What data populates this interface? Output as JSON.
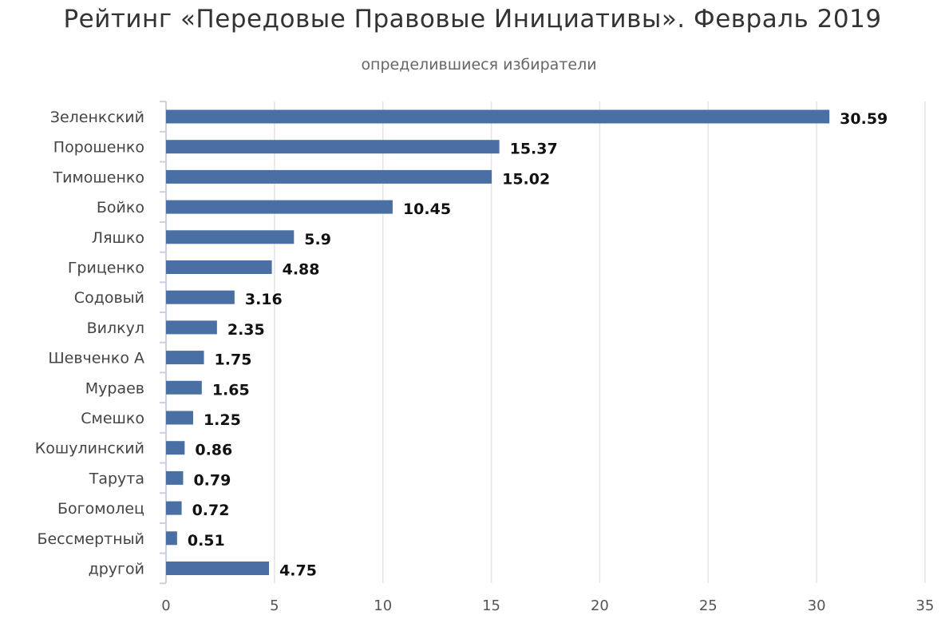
{
  "chart_data": {
    "type": "bar",
    "orientation": "horizontal",
    "title": "Рейтинг «Передовые Правовые Инициативы». Февраль 2019",
    "subtitle": "определившиеся избиратели",
    "categories": [
      "Зеленкский",
      "Порошенко",
      "Тимошенко",
      "Бойко",
      "Ляшко",
      "Гриценко",
      "Содовый",
      "Вилкул",
      "Шевченко А",
      "Мураев",
      "Смешко",
      "Кошулинский",
      "Тарута",
      "Богомолец",
      "Бессмертный",
      "другой"
    ],
    "values": [
      30.59,
      15.37,
      15.02,
      10.45,
      5.9,
      4.88,
      3.16,
      2.35,
      1.75,
      1.65,
      1.25,
      0.86,
      0.79,
      0.72,
      0.51,
      4.75
    ],
    "value_labels": [
      "30.59",
      "15.37",
      "15.02",
      "10.45",
      "5.9",
      "4.88",
      "3.16",
      "2.35",
      "1.75",
      "1.65",
      "1.25",
      "0.86",
      "0.79",
      "0.72",
      "0.51",
      "4.75"
    ],
    "xticks": [
      "0",
      "5",
      "10",
      "15",
      "20",
      "25",
      "30",
      "35"
    ],
    "xlim": [
      0,
      35
    ],
    "grid": true,
    "bar_color": "#4a6fa5",
    "grid_color": "#e4e4ea"
  }
}
